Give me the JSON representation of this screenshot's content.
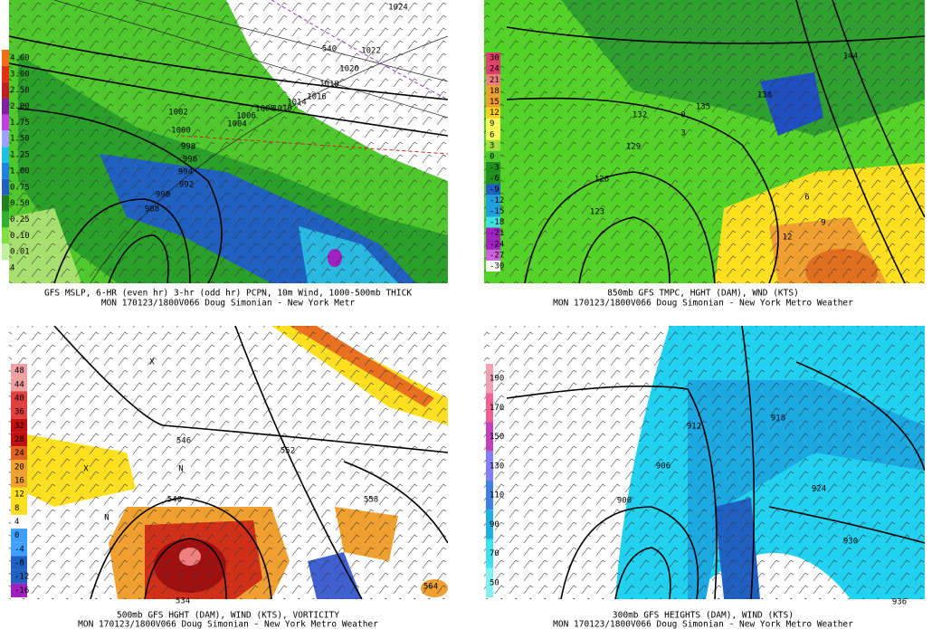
{
  "panels": [
    {
      "caption": [
        "GFS MSLP, 6-HR (even hr) 3-hr (odd hr) PCPN, 10m Wind, 1000-500mb THICK",
        "MON 170123/1800V066 Doug Simonian - New York Metr"
      ],
      "colorbar": [
        "4.00",
        "3.00",
        "2.50",
        "2.00",
        "1.75",
        "1.50",
        "1.25",
        "1.00",
        "0.75",
        "0.50",
        "0.25",
        "0.10",
        "0.01",
        "4"
      ],
      "labels": [
        "1024",
        "1022",
        "1020",
        "1018",
        "1016",
        "1014",
        "1010",
        "1008",
        "1006",
        "1004",
        "1002",
        "1000",
        "998",
        "996",
        "994",
        "992",
        "990",
        "988",
        "540"
      ]
    },
    {
      "caption": [
        "850mb GFS TMPC, HGHT (DAM), WND (KTS)",
        "MON 170123/1800V066 Doug Simonian - New York Metro Weather"
      ],
      "colorbar": [
        "30",
        "24",
        "21",
        "18",
        "15",
        "12",
        "9",
        "6",
        "3",
        "0",
        "-3",
        "-6",
        "-9",
        "-12",
        "-15",
        "-18",
        "-21",
        "-24",
        "-27",
        "-30"
      ],
      "labels": [
        "144",
        "138",
        "135",
        "132",
        "129",
        "126",
        "123",
        "0",
        "3",
        "6",
        "9",
        "12"
      ]
    },
    {
      "caption": [
        "500mb GFS HGHT (DAM), WIND (KTS), VORTICITY",
        "MON 170123/1800V066 Doug Simonian - New York Metro Weather"
      ],
      "colorbar": [
        "48",
        "44",
        "40",
        "36",
        "32",
        "28",
        "24",
        "20",
        "16",
        "12",
        "8",
        "4",
        "0",
        "-4",
        "-8",
        "-12",
        "-16"
      ],
      "labels": [
        "546",
        "552",
        "540",
        "558",
        "534",
        "564",
        "X",
        "X",
        "N",
        "N"
      ]
    },
    {
      "caption": [
        "300mb GFS HEIGHTS (DAM), WIND (KTS)",
        "MON 170123/1800V066 Doug Simonian - New York Metro Weather"
      ],
      "colorbar": [
        "190",
        "170",
        "150",
        "130",
        "110",
        "90",
        "70",
        "50"
      ],
      "labels": [
        "918",
        "912",
        "906",
        "900",
        "924",
        "930",
        "936"
      ]
    }
  ]
}
